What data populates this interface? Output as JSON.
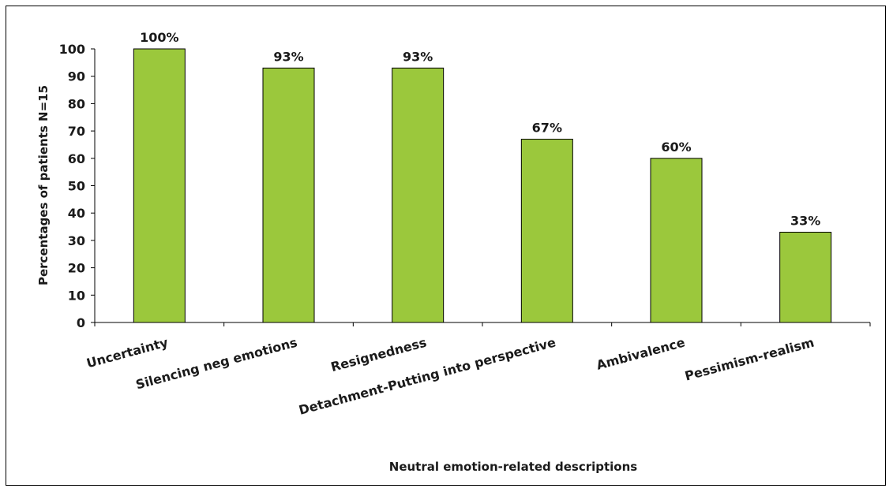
{
  "chart_data": {
    "type": "bar",
    "categories": [
      "Uncertainty",
      "Silencing neg emotions",
      "Resignedness",
      "Detachment-Putting into perspective",
      "Ambivalence",
      "Pessimism-realism"
    ],
    "values": [
      100,
      93,
      93,
      67,
      60,
      33
    ],
    "data_labels": [
      "100%",
      "93%",
      "93%",
      "67%",
      "60%",
      "33%"
    ],
    "xlabel": "Neutral emotion-related descriptions",
    "ylabel": "Percentages of patients N=15",
    "ylim": [
      0,
      100
    ],
    "yticks": [
      0,
      10,
      20,
      30,
      40,
      50,
      60,
      70,
      80,
      90,
      100
    ],
    "grid": false,
    "legend": "none",
    "colors": {
      "bar_fill": "#9BC83C",
      "bar_stroke": "#000000",
      "axis": "#000000"
    }
  }
}
